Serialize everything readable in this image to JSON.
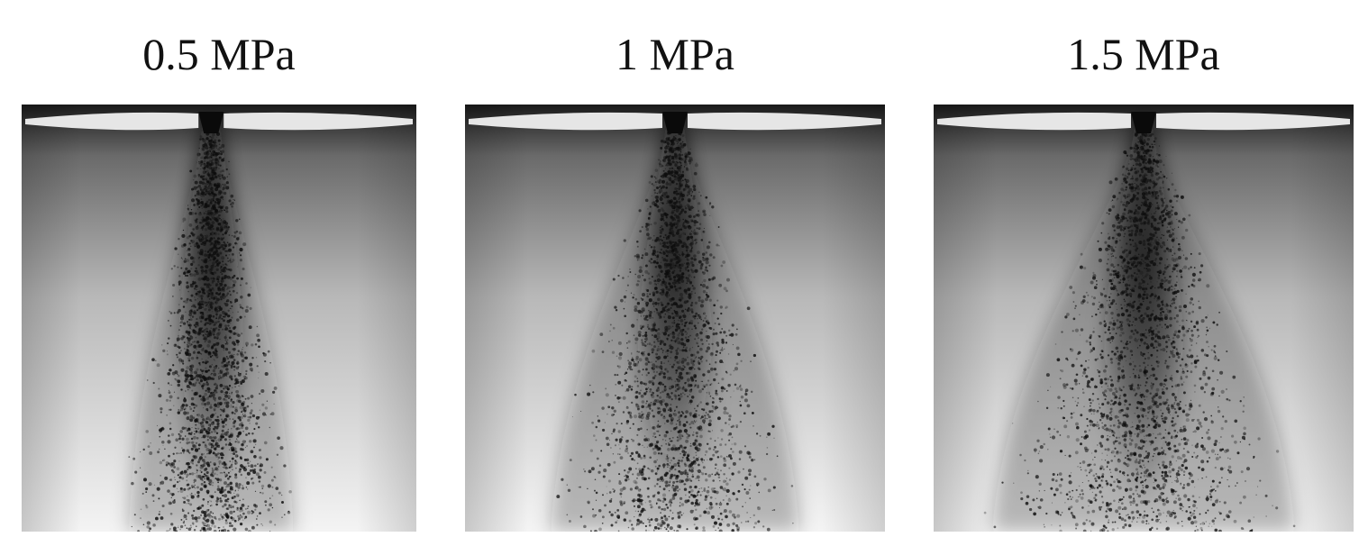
{
  "panels": [
    {
      "label": "0.5 MPa",
      "spread": 0.55,
      "seed": 11
    },
    {
      "label": "1 MPa",
      "spread": 0.78,
      "seed": 23
    },
    {
      "label": "1.5 MPa",
      "spread": 0.95,
      "seed": 37
    }
  ],
  "colors": {
    "background_top": "#1a1a1a",
    "background_mid": "#b8b8b8",
    "background_bottom": "#f4f4f4",
    "nozzle_plate": "#e6e6e6",
    "spray_core": "#0d0d0d",
    "text": "#111111"
  }
}
